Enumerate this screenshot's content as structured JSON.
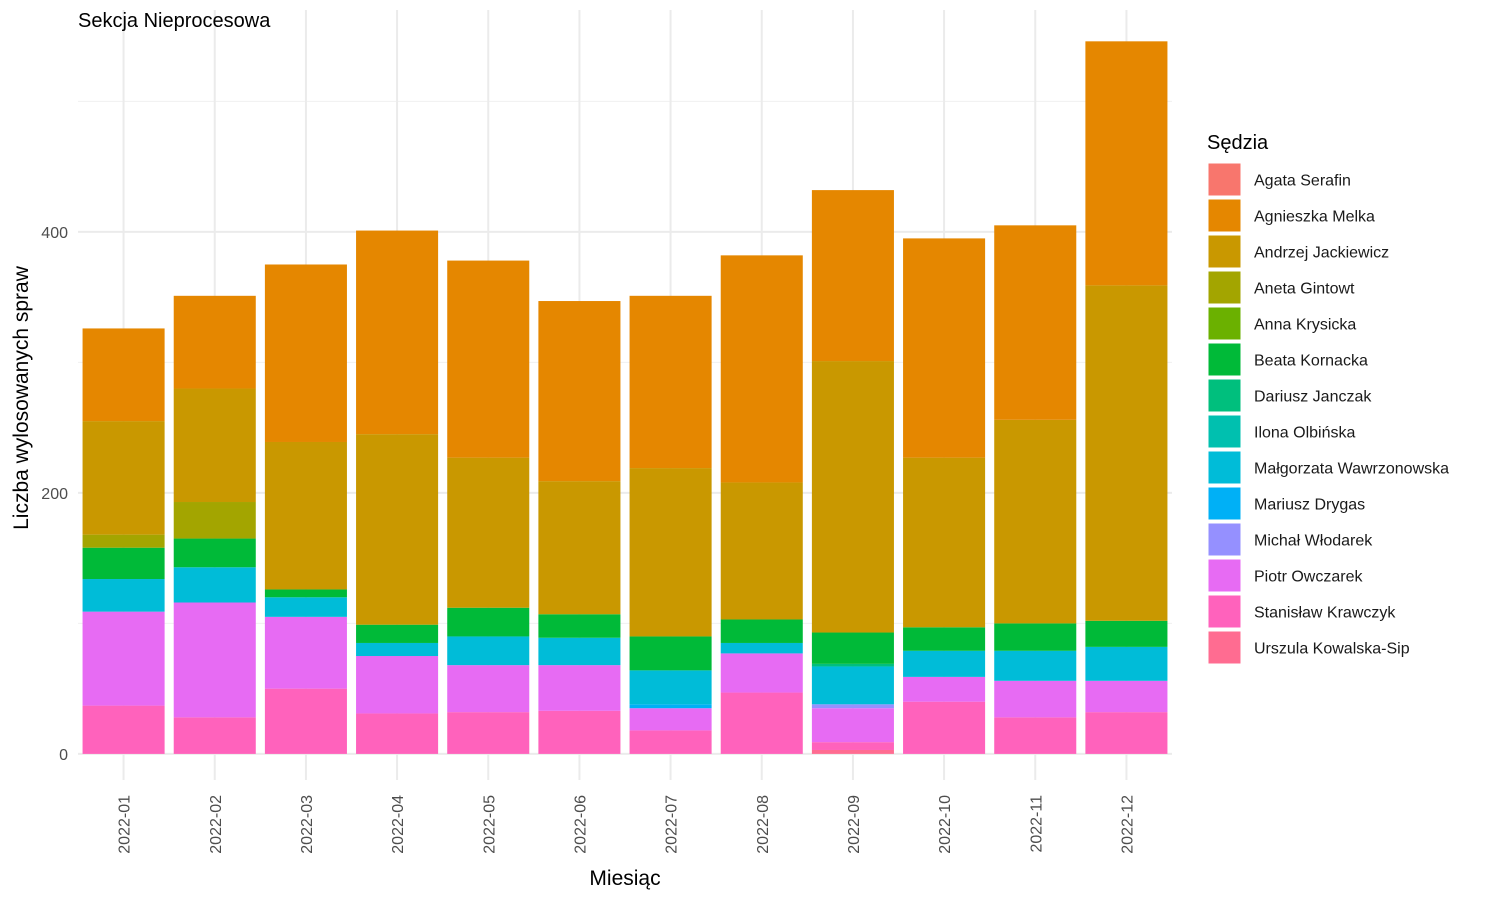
{
  "chart_data": {
    "type": "bar",
    "stacked": true,
    "title": "Sekcja Nieprocesowa",
    "xlabel": "Miesiąc",
    "ylabel": "Liczba wylosowanych spraw",
    "ylim": [
      -20,
      570
    ],
    "yticks": [
      0,
      200,
      400
    ],
    "grid": true,
    "legend_title": "Sędzia",
    "legend_position": "right",
    "categories": [
      "2022-01",
      "2022-02",
      "2022-03",
      "2022-04",
      "2022-05",
      "2022-06",
      "2022-07",
      "2022-08",
      "2022-09",
      "2022-10",
      "2022-11",
      "2022-12"
    ],
    "series": [
      {
        "name": "Agata Serafin",
        "color": "#F8766D",
        "values": [
          0,
          0,
          0,
          0,
          0,
          0,
          0,
          0,
          0,
          0,
          0,
          0
        ]
      },
      {
        "name": "Agnieszka Melka",
        "color": "#E58700",
        "values": [
          71,
          71,
          136,
          156,
          151,
          138,
          132,
          174,
          131,
          168,
          149,
          187
        ]
      },
      {
        "name": "Andrzej Jackiewicz",
        "color": "#C99800",
        "values": [
          87,
          87,
          113,
          146,
          115,
          102,
          129,
          105,
          208,
          130,
          156,
          257
        ]
      },
      {
        "name": "Aneta Gintowt",
        "color": "#A3A500",
        "values": [
          10,
          28,
          0,
          0,
          0,
          0,
          0,
          0,
          0,
          0,
          0,
          0
        ]
      },
      {
        "name": "Anna Krysicka",
        "color": "#6BB100",
        "values": [
          0,
          0,
          0,
          0,
          0,
          0,
          0,
          0,
          0,
          0,
          0,
          0
        ]
      },
      {
        "name": "Beata Kornacka",
        "color": "#00BA38",
        "values": [
          24,
          22,
          6,
          14,
          22,
          18,
          26,
          18,
          24,
          18,
          21,
          20
        ]
      },
      {
        "name": "Dariusz Janczak",
        "color": "#00BF7D",
        "values": [
          0,
          0,
          0,
          0,
          0,
          0,
          0,
          0,
          2,
          0,
          0,
          0
        ]
      },
      {
        "name": "Ilona Olbińska",
        "color": "#00C0AF",
        "values": [
          0,
          0,
          0,
          0,
          0,
          0,
          0,
          0,
          0,
          0,
          0,
          0
        ]
      },
      {
        "name": "Małgorzata Wawrzonowska",
        "color": "#00BCD8",
        "values": [
          25,
          27,
          15,
          10,
          22,
          21,
          26,
          8,
          29,
          20,
          23,
          26
        ]
      },
      {
        "name": "Mariusz Drygas",
        "color": "#00B0F6",
        "values": [
          0,
          0,
          0,
          0,
          0,
          0,
          3,
          0,
          0,
          0,
          0,
          0
        ]
      },
      {
        "name": "Michał Włodarek",
        "color": "#9590FF",
        "values": [
          0,
          0,
          0,
          0,
          0,
          0,
          0,
          0,
          3,
          0,
          0,
          0
        ]
      },
      {
        "name": "Piotr Owczarek",
        "color": "#E76BF3",
        "values": [
          72,
          88,
          55,
          44,
          36,
          35,
          17,
          30,
          26,
          19,
          28,
          24
        ]
      },
      {
        "name": "Stanisław Krawczyk",
        "color": "#FF62BC",
        "values": [
          37,
          28,
          50,
          31,
          32,
          33,
          18,
          47,
          6,
          40,
          28,
          32
        ]
      },
      {
        "name": "Urszula Kowalska-Sip",
        "color": "#FF6C91",
        "values": [
          0,
          0,
          0,
          0,
          0,
          0,
          0,
          0,
          3,
          0,
          0,
          0
        ]
      }
    ]
  }
}
